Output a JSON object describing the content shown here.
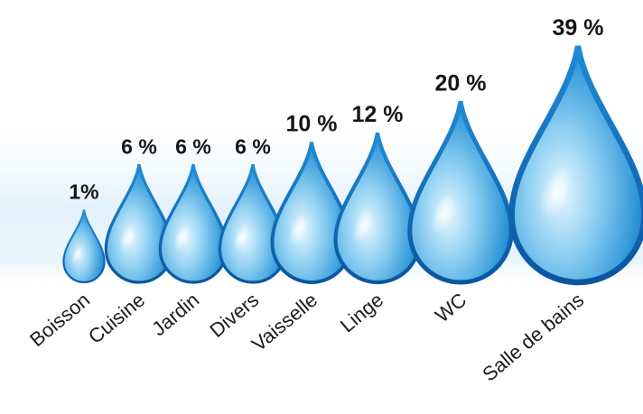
{
  "chart_data": {
    "type": "bar",
    "title": "",
    "xlabel": "",
    "ylabel": "",
    "unit": "%",
    "categories": [
      "Boisson",
      "Cuisine",
      "Jardin",
      "Divers",
      "Vaisselle",
      "Linge",
      "WC",
      "Salle de bains"
    ],
    "values": [
      1,
      6,
      6,
      6,
      10,
      12,
      20,
      39
    ],
    "value_labels": [
      "1%",
      "6 %",
      "6 %",
      "6 %",
      "10 %",
      "12 %",
      "20 %",
      "39 %"
    ],
    "marker_shape": "water-drop",
    "colors": {
      "drop_light": "#cfeffd",
      "drop_mid": "#3aa6e0",
      "drop_dark": "#0a62ae",
      "drop_edge": "#0b5fa8",
      "background_glow": "#dff0fb"
    }
  }
}
